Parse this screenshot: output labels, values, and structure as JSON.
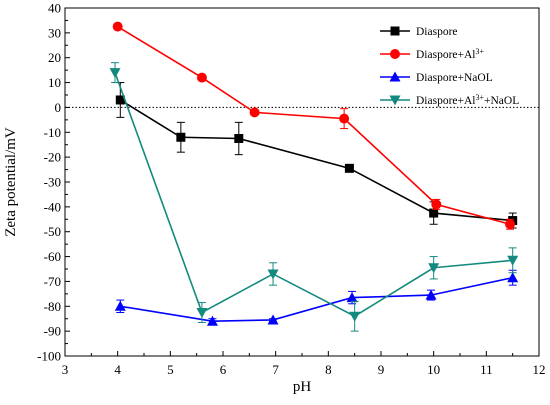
{
  "chart_data": {
    "type": "line",
    "title": "",
    "xlabel": "pH",
    "ylabel": "Zeta potential/mV",
    "xlim": [
      3,
      12
    ],
    "ylim": [
      -100,
      40
    ],
    "xticks": [
      3,
      4,
      5,
      6,
      7,
      8,
      9,
      10,
      11,
      12
    ],
    "yticks": [
      -100,
      -90,
      -80,
      -70,
      -60,
      -50,
      -40,
      -30,
      -20,
      -10,
      0,
      10,
      20,
      30,
      40
    ],
    "reference_line": {
      "y": 0,
      "style": "dotted"
    },
    "grid": false,
    "legend": "top-right",
    "series": [
      {
        "name": "Diaspore",
        "legend_main": "Diaspore",
        "legend_sup": "",
        "legend_tail": "",
        "color": "#000000",
        "marker": "square",
        "x": [
          4.05,
          5.2,
          6.3,
          8.4,
          10.0,
          11.5
        ],
        "y": [
          3,
          -12,
          -12.5,
          -24.5,
          -42.5,
          -45.5
        ],
        "err": [
          7,
          6,
          6.5,
          1,
          4.5,
          3
        ]
      },
      {
        "name": "Diaspore+Al3+",
        "legend_main": "Diaspore+Al",
        "legend_sup": "3+",
        "legend_tail": "",
        "color": "#ff0000",
        "marker": "circle",
        "x": [
          4.0,
          5.6,
          6.6,
          8.3,
          10.05,
          11.45
        ],
        "y": [
          32.5,
          12,
          -2,
          -4.5,
          -39,
          -47
        ],
        "err": [
          0,
          0,
          0,
          4,
          2,
          2
        ]
      },
      {
        "name": "Diaspore+NaOL",
        "legend_main": "Diaspore+NaOL",
        "legend_sup": "",
        "legend_tail": "",
        "color": "#0000ff",
        "marker": "triangle-up",
        "x": [
          4.05,
          5.8,
          6.95,
          8.45,
          9.95,
          11.5
        ],
        "y": [
          -80,
          -86,
          -85.5,
          -76.5,
          -75.5,
          -68.5
        ],
        "err": [
          2.5,
          1,
          0.5,
          2.5,
          2,
          3
        ]
      },
      {
        "name": "Diaspore+Al3++NaOL",
        "legend_main": "Diaspore+Al",
        "legend_sup": "3+",
        "legend_tail": "+NaOL",
        "color": "#138a7e",
        "marker": "triangle-down",
        "x": [
          3.95,
          5.6,
          6.95,
          8.5,
          10.0,
          11.5
        ],
        "y": [
          14,
          -82.5,
          -67,
          -84,
          -64.5,
          -61.5
        ],
        "err": [
          4,
          4,
          4.5,
          6,
          4.5,
          5
        ]
      }
    ]
  }
}
